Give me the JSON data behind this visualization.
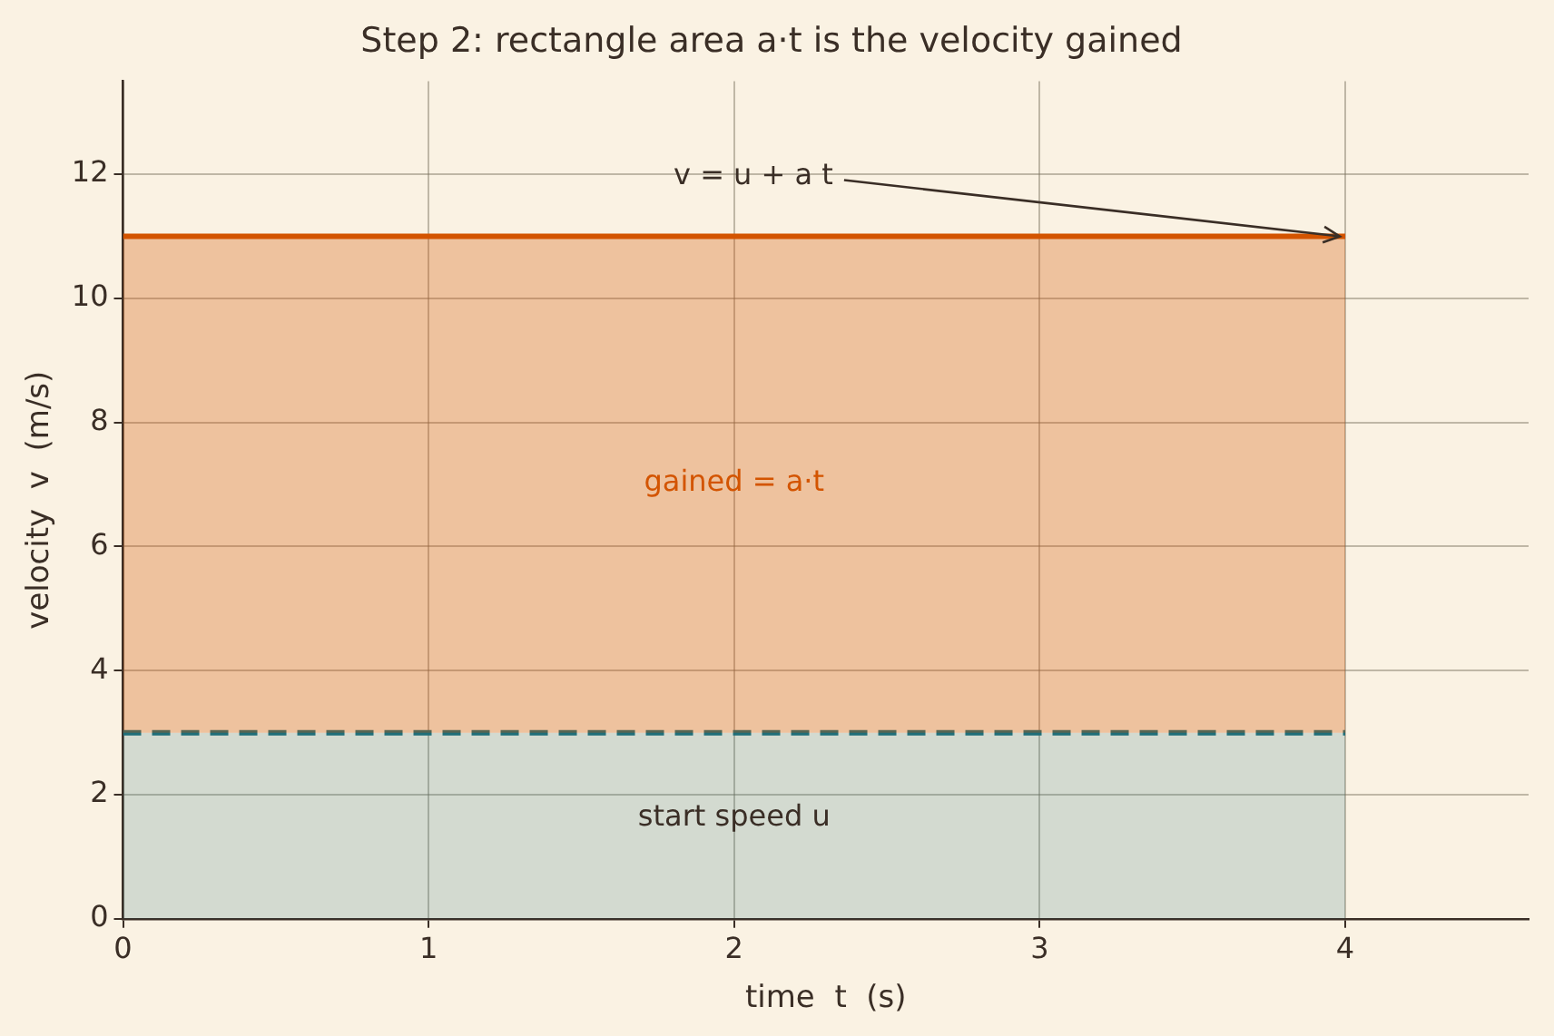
{
  "chart_data": {
    "type": "area",
    "title": "Step 2: rectangle area a·t is the velocity gained",
    "xlabel": "time  t  (s)",
    "ylabel": "velocity  v  (m/s)",
    "x": [
      0,
      4
    ],
    "series": [
      {
        "color": "#1f6e78",
        "values": [
          3,
          3
        ],
        "line_style": "dashed"
      },
      {
        "color": "#d35400",
        "values": [
          11,
          11
        ],
        "line_style": "solid"
      }
    ],
    "xlim": [
      0,
      4.6
    ],
    "xticks": [
      0,
      1,
      2,
      3,
      4
    ],
    "ylim": [
      0,
      13.5
    ],
    "yticks": [
      0,
      2,
      4,
      6,
      8,
      10,
      12
    ],
    "grid": true,
    "legend": false,
    "marker": "none",
    "annotations": [
      {
        "text": "v = u + a t",
        "x": 4,
        "y": 11
      },
      "gained = a·t",
      "start speed u"
    ]
  }
}
